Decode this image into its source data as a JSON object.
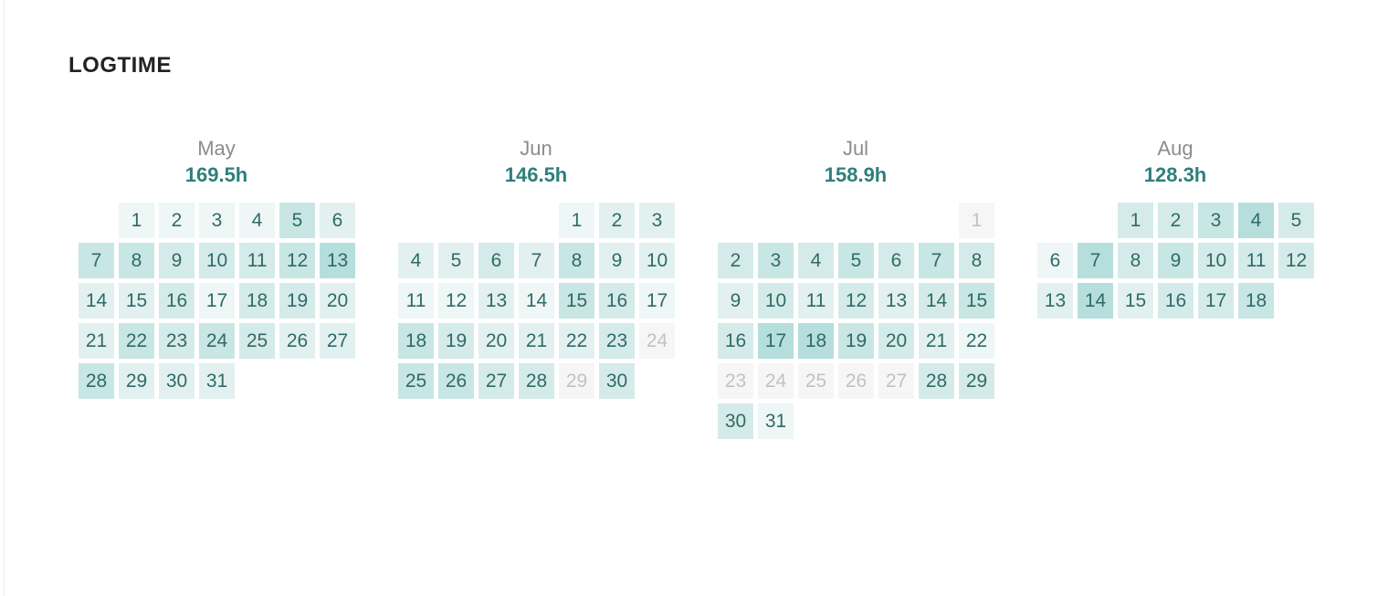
{
  "title": "LOGTIME",
  "months": [
    {
      "name": "May",
      "total": "169.5h",
      "days": [
        {
          "d": "1",
          "col": 1,
          "row": 0,
          "lvl": 1
        },
        {
          "d": "2",
          "col": 2,
          "row": 0,
          "lvl": 1
        },
        {
          "d": "3",
          "col": 3,
          "row": 0,
          "lvl": 1
        },
        {
          "d": "4",
          "col": 4,
          "row": 0,
          "lvl": 1
        },
        {
          "d": "5",
          "col": 5,
          "row": 0,
          "lvl": 4
        },
        {
          "d": "6",
          "col": 6,
          "row": 0,
          "lvl": 2
        },
        {
          "d": "7",
          "col": 0,
          "row": 1,
          "lvl": 4
        },
        {
          "d": "8",
          "col": 1,
          "row": 1,
          "lvl": 4
        },
        {
          "d": "9",
          "col": 2,
          "row": 1,
          "lvl": 3
        },
        {
          "d": "10",
          "col": 3,
          "row": 1,
          "lvl": 3
        },
        {
          "d": "11",
          "col": 4,
          "row": 1,
          "lvl": 3
        },
        {
          "d": "12",
          "col": 5,
          "row": 1,
          "lvl": 4
        },
        {
          "d": "13",
          "col": 6,
          "row": 1,
          "lvl": 5
        },
        {
          "d": "14",
          "col": 0,
          "row": 2,
          "lvl": 2
        },
        {
          "d": "15",
          "col": 1,
          "row": 2,
          "lvl": 2
        },
        {
          "d": "16",
          "col": 2,
          "row": 2,
          "lvl": 3
        },
        {
          "d": "17",
          "col": 3,
          "row": 2,
          "lvl": 1
        },
        {
          "d": "18",
          "col": 4,
          "row": 2,
          "lvl": 3
        },
        {
          "d": "19",
          "col": 5,
          "row": 2,
          "lvl": 3
        },
        {
          "d": "20",
          "col": 6,
          "row": 2,
          "lvl": 2
        },
        {
          "d": "21",
          "col": 0,
          "row": 3,
          "lvl": 2
        },
        {
          "d": "22",
          "col": 1,
          "row": 3,
          "lvl": 4
        },
        {
          "d": "23",
          "col": 2,
          "row": 3,
          "lvl": 3
        },
        {
          "d": "24",
          "col": 3,
          "row": 3,
          "lvl": 4
        },
        {
          "d": "25",
          "col": 4,
          "row": 3,
          "lvl": 3
        },
        {
          "d": "26",
          "col": 5,
          "row": 3,
          "lvl": 2
        },
        {
          "d": "27",
          "col": 6,
          "row": 3,
          "lvl": 2
        },
        {
          "d": "28",
          "col": 0,
          "row": 4,
          "lvl": 4
        },
        {
          "d": "29",
          "col": 1,
          "row": 4,
          "lvl": 2
        },
        {
          "d": "30",
          "col": 2,
          "row": 4,
          "lvl": 2
        },
        {
          "d": "31",
          "col": 3,
          "row": 4,
          "lvl": 2
        }
      ]
    },
    {
      "name": "Jun",
      "total": "146.5h",
      "days": [
        {
          "d": "1",
          "col": 4,
          "row": 0,
          "lvl": 1
        },
        {
          "d": "2",
          "col": 5,
          "row": 0,
          "lvl": 2
        },
        {
          "d": "3",
          "col": 6,
          "row": 0,
          "lvl": 2
        },
        {
          "d": "4",
          "col": 0,
          "row": 1,
          "lvl": 2
        },
        {
          "d": "5",
          "col": 1,
          "row": 1,
          "lvl": 2
        },
        {
          "d": "6",
          "col": 2,
          "row": 1,
          "lvl": 3
        },
        {
          "d": "7",
          "col": 3,
          "row": 1,
          "lvl": 2
        },
        {
          "d": "8",
          "col": 4,
          "row": 1,
          "lvl": 4
        },
        {
          "d": "9",
          "col": 5,
          "row": 1,
          "lvl": 2
        },
        {
          "d": "10",
          "col": 6,
          "row": 1,
          "lvl": 2
        },
        {
          "d": "11",
          "col": 0,
          "row": 2,
          "lvl": 1
        },
        {
          "d": "12",
          "col": 1,
          "row": 2,
          "lvl": 1
        },
        {
          "d": "13",
          "col": 2,
          "row": 2,
          "lvl": 2
        },
        {
          "d": "14",
          "col": 3,
          "row": 2,
          "lvl": 1
        },
        {
          "d": "15",
          "col": 4,
          "row": 2,
          "lvl": 4
        },
        {
          "d": "16",
          "col": 5,
          "row": 2,
          "lvl": 3
        },
        {
          "d": "17",
          "col": 6,
          "row": 2,
          "lvl": 1
        },
        {
          "d": "18",
          "col": 0,
          "row": 3,
          "lvl": 4
        },
        {
          "d": "19",
          "col": 1,
          "row": 3,
          "lvl": 3
        },
        {
          "d": "20",
          "col": 2,
          "row": 3,
          "lvl": 2
        },
        {
          "d": "21",
          "col": 3,
          "row": 3,
          "lvl": 2
        },
        {
          "d": "22",
          "col": 4,
          "row": 3,
          "lvl": 2
        },
        {
          "d": "23",
          "col": 5,
          "row": 3,
          "lvl": 3
        },
        {
          "d": "24",
          "col": 6,
          "row": 3,
          "lvl": 0
        },
        {
          "d": "25",
          "col": 0,
          "row": 4,
          "lvl": 4
        },
        {
          "d": "26",
          "col": 1,
          "row": 4,
          "lvl": 4
        },
        {
          "d": "27",
          "col": 2,
          "row": 4,
          "lvl": 3
        },
        {
          "d": "28",
          "col": 3,
          "row": 4,
          "lvl": 3
        },
        {
          "d": "29",
          "col": 4,
          "row": 4,
          "lvl": 0
        },
        {
          "d": "30",
          "col": 5,
          "row": 4,
          "lvl": 3
        }
      ]
    },
    {
      "name": "Jul",
      "total": "158.9h",
      "days": [
        {
          "d": "1",
          "col": 6,
          "row": 0,
          "lvl": 0
        },
        {
          "d": "2",
          "col": 0,
          "row": 1,
          "lvl": 3
        },
        {
          "d": "3",
          "col": 1,
          "row": 1,
          "lvl": 4
        },
        {
          "d": "4",
          "col": 2,
          "row": 1,
          "lvl": 3
        },
        {
          "d": "5",
          "col": 3,
          "row": 1,
          "lvl": 4
        },
        {
          "d": "6",
          "col": 4,
          "row": 1,
          "lvl": 3
        },
        {
          "d": "7",
          "col": 5,
          "row": 1,
          "lvl": 4
        },
        {
          "d": "8",
          "col": 6,
          "row": 1,
          "lvl": 3
        },
        {
          "d": "9",
          "col": 0,
          "row": 2,
          "lvl": 2
        },
        {
          "d": "10",
          "col": 1,
          "row": 2,
          "lvl": 3
        },
        {
          "d": "11",
          "col": 2,
          "row": 2,
          "lvl": 2
        },
        {
          "d": "12",
          "col": 3,
          "row": 2,
          "lvl": 3
        },
        {
          "d": "13",
          "col": 4,
          "row": 2,
          "lvl": 2
        },
        {
          "d": "14",
          "col": 5,
          "row": 2,
          "lvl": 3
        },
        {
          "d": "15",
          "col": 6,
          "row": 2,
          "lvl": 4
        },
        {
          "d": "16",
          "col": 0,
          "row": 3,
          "lvl": 3
        },
        {
          "d": "17",
          "col": 1,
          "row": 3,
          "lvl": 5
        },
        {
          "d": "18",
          "col": 2,
          "row": 3,
          "lvl": 5
        },
        {
          "d": "19",
          "col": 3,
          "row": 3,
          "lvl": 4
        },
        {
          "d": "20",
          "col": 4,
          "row": 3,
          "lvl": 3
        },
        {
          "d": "21",
          "col": 5,
          "row": 3,
          "lvl": 2
        },
        {
          "d": "22",
          "col": 6,
          "row": 3,
          "lvl": 1
        },
        {
          "d": "23",
          "col": 0,
          "row": 4,
          "lvl": 0
        },
        {
          "d": "24",
          "col": 1,
          "row": 4,
          "lvl": 0
        },
        {
          "d": "25",
          "col": 2,
          "row": 4,
          "lvl": 0
        },
        {
          "d": "26",
          "col": 3,
          "row": 4,
          "lvl": 0
        },
        {
          "d": "27",
          "col": 4,
          "row": 4,
          "lvl": 0
        },
        {
          "d": "28",
          "col": 5,
          "row": 4,
          "lvl": 3
        },
        {
          "d": "29",
          "col": 6,
          "row": 4,
          "lvl": 3
        },
        {
          "d": "30",
          "col": 0,
          "row": 5,
          "lvl": 3
        },
        {
          "d": "31",
          "col": 1,
          "row": 5,
          "lvl": 1
        }
      ]
    },
    {
      "name": "Aug",
      "total": "128.3h",
      "days": [
        {
          "d": "1",
          "col": 2,
          "row": 0,
          "lvl": 3
        },
        {
          "d": "2",
          "col": 3,
          "row": 0,
          "lvl": 3
        },
        {
          "d": "3",
          "col": 4,
          "row": 0,
          "lvl": 4
        },
        {
          "d": "4",
          "col": 5,
          "row": 0,
          "lvl": 5
        },
        {
          "d": "5",
          "col": 6,
          "row": 0,
          "lvl": 3
        },
        {
          "d": "6",
          "col": 0,
          "row": 1,
          "lvl": 1
        },
        {
          "d": "7",
          "col": 1,
          "row": 1,
          "lvl": 5
        },
        {
          "d": "8",
          "col": 2,
          "row": 1,
          "lvl": 3
        },
        {
          "d": "9",
          "col": 3,
          "row": 1,
          "lvl": 4
        },
        {
          "d": "10",
          "col": 4,
          "row": 1,
          "lvl": 3
        },
        {
          "d": "11",
          "col": 5,
          "row": 1,
          "lvl": 3
        },
        {
          "d": "12",
          "col": 6,
          "row": 1,
          "lvl": 3
        },
        {
          "d": "13",
          "col": 0,
          "row": 2,
          "lvl": 2
        },
        {
          "d": "14",
          "col": 1,
          "row": 2,
          "lvl": 5
        },
        {
          "d": "15",
          "col": 2,
          "row": 2,
          "lvl": 2
        },
        {
          "d": "16",
          "col": 3,
          "row": 2,
          "lvl": 3
        },
        {
          "d": "17",
          "col": 4,
          "row": 2,
          "lvl": 3
        },
        {
          "d": "18",
          "col": 5,
          "row": 2,
          "lvl": 4
        }
      ]
    }
  ]
}
